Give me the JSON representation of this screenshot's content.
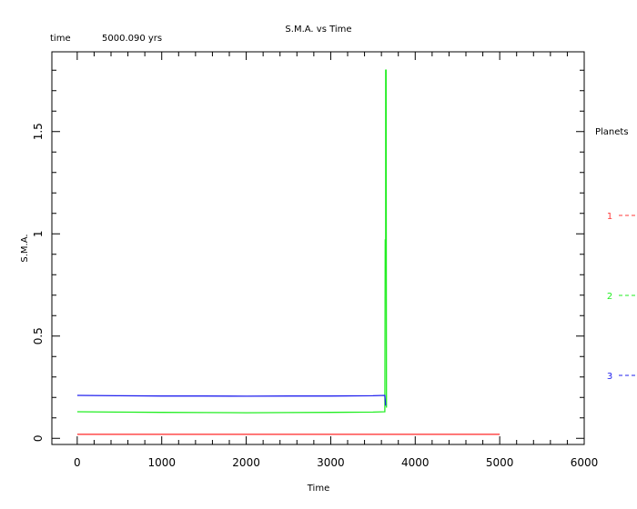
{
  "header": {
    "time_label": "time",
    "time_value": "5000.090 yrs"
  },
  "legend": {
    "title": "Planets",
    "items": [
      {
        "label": "1",
        "color": "#ff3b3b"
      },
      {
        "label": "2",
        "color": "#22ee22"
      },
      {
        "label": "3",
        "color": "#2222ee"
      }
    ]
  },
  "chart_data": {
    "type": "line",
    "title": "S.M.A. vs Time",
    "xlabel": "Time",
    "ylabel": "S.M.A.",
    "xlim": [
      -300,
      6000
    ],
    "ylim": [
      -0.03,
      1.89
    ],
    "xticks": [
      0,
      1000,
      2000,
      3000,
      4000,
      5000,
      6000
    ],
    "yticks": [
      0,
      0.5,
      1,
      1.5
    ],
    "grid": false,
    "legend_position": "right",
    "series": [
      {
        "name": "1",
        "color": "#ff3b3b",
        "x": [
          0,
          5000
        ],
        "y": [
          0.02,
          0.02
        ]
      },
      {
        "name": "2",
        "color": "#22ee22",
        "x": [
          0,
          500,
          1000,
          1500,
          2000,
          2500,
          3000,
          3500,
          3640,
          3645,
          3650,
          3650,
          3655,
          3660
        ],
        "y": [
          0.13,
          0.128,
          0.127,
          0.126,
          0.125,
          0.126,
          0.127,
          0.128,
          0.13,
          0.97,
          0.97,
          1.8,
          1.8,
          0.15
        ]
      },
      {
        "name": "3",
        "color": "#2222ee",
        "x": [
          0,
          500,
          1000,
          1500,
          2000,
          2500,
          3000,
          3500,
          3640,
          3645,
          3650
        ],
        "y": [
          0.21,
          0.208,
          0.207,
          0.207,
          0.206,
          0.207,
          0.207,
          0.208,
          0.21,
          0.19,
          0.16
        ]
      }
    ]
  }
}
